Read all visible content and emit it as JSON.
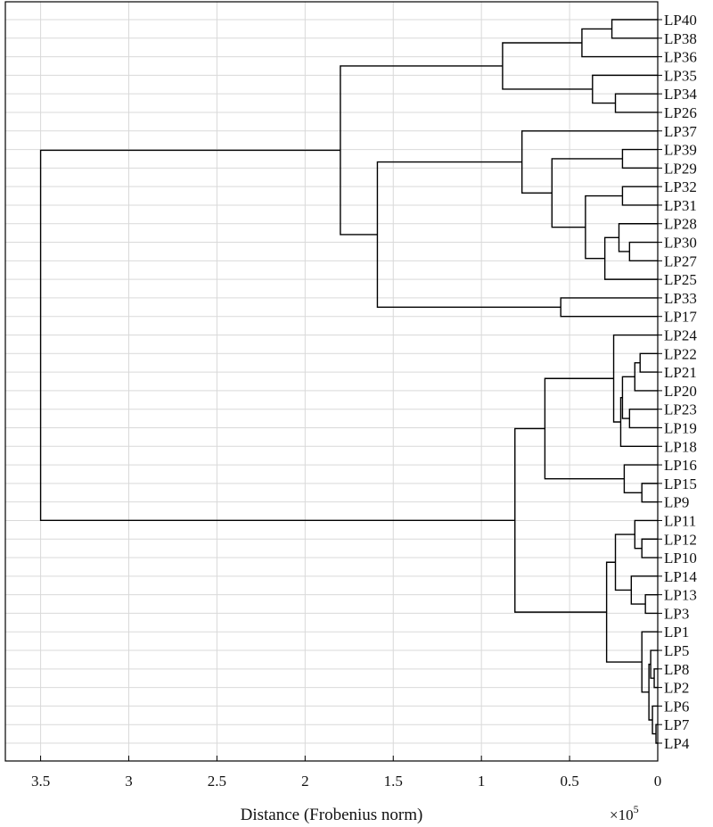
{
  "chart_data": {
    "type": "dendrogram",
    "orientation": "leaves-right",
    "xlabel": "Distance (Frobenius norm)",
    "x_multiplier_label": "×10",
    "x_multiplier_exponent": "5",
    "xlim": [
      0,
      3.7
    ],
    "x_reversed": true,
    "x_ticks": [
      3.5,
      3,
      2.5,
      2,
      1.5,
      1,
      0.5,
      0
    ],
    "x_tick_labels": [
      "3.5",
      "3",
      "2.5",
      "2",
      "1.5",
      "1",
      "0.5",
      "0"
    ],
    "grid": true,
    "line_color": "#000000",
    "grid_color": "#d9d9d9",
    "leaves": [
      "LP40",
      "LP38",
      "LP36",
      "LP35",
      "LP34",
      "LP26",
      "LP37",
      "LP39",
      "LP29",
      "LP32",
      "LP31",
      "LP28",
      "LP30",
      "LP27",
      "LP25",
      "LP33",
      "LP17",
      "LP24",
      "LP22",
      "LP21",
      "LP20",
      "LP23",
      "LP19",
      "LP18",
      "LP16",
      "LP15",
      "LP9",
      "LP11",
      "LP12",
      "LP10",
      "LP14",
      "LP13",
      "LP3",
      "LP1",
      "LP5",
      "LP8",
      "LP2",
      "LP6",
      "LP7",
      "LP4"
    ],
    "merges": [
      {
        "id": "A1",
        "left": "LP40",
        "right": "LP38",
        "height": 0.26
      },
      {
        "id": "A2",
        "left": "A1",
        "right": "LP36",
        "height": 0.43
      },
      {
        "id": "A3",
        "left": "LP34",
        "right": "LP26",
        "height": 0.24
      },
      {
        "id": "A4",
        "left": "LP35",
        "right": "A3",
        "height": 0.37
      },
      {
        "id": "A5",
        "left": "A2",
        "right": "A4",
        "height": 0.88
      },
      {
        "id": "B1",
        "left": "LP39",
        "right": "LP29",
        "height": 0.2
      },
      {
        "id": "B2",
        "left": "LP32",
        "right": "LP31",
        "height": 0.2
      },
      {
        "id": "B3",
        "left": "LP30",
        "right": "LP27",
        "height": 0.16
      },
      {
        "id": "B4",
        "left": "LP28",
        "right": "B3",
        "height": 0.22
      },
      {
        "id": "B5",
        "left": "B4",
        "right": "LP25",
        "height": 0.3
      },
      {
        "id": "B6",
        "left": "B2",
        "right": "B5",
        "height": 0.41
      },
      {
        "id": "B7",
        "left": "B1",
        "right": "B6",
        "height": 0.6
      },
      {
        "id": "B8",
        "left": "LP37",
        "right": "B7",
        "height": 0.77
      },
      {
        "id": "B9",
        "left": "LP33",
        "right": "LP17",
        "height": 0.55
      },
      {
        "id": "B10",
        "left": "B8",
        "right": "B9",
        "height": 1.59
      },
      {
        "id": "T1",
        "left": "A5",
        "right": "B10",
        "height": 1.8
      },
      {
        "id": "C1",
        "left": "LP22",
        "right": "LP21",
        "height": 0.1
      },
      {
        "id": "C2",
        "left": "C1",
        "right": "LP20",
        "height": 0.13
      },
      {
        "id": "C3",
        "left": "LP23",
        "right": "LP19",
        "height": 0.16
      },
      {
        "id": "C4",
        "left": "C2",
        "right": "C3",
        "height": 0.2
      },
      {
        "id": "C5",
        "left": "C4",
        "right": "LP18",
        "height": 0.21
      },
      {
        "id": "C6",
        "left": "LP24",
        "right": "C5",
        "height": 0.25
      },
      {
        "id": "C7",
        "left": "LP15",
        "right": "LP9",
        "height": 0.09
      },
      {
        "id": "C8",
        "left": "LP16",
        "right": "C7",
        "height": 0.19
      },
      {
        "id": "C9",
        "left": "C6",
        "right": "C8",
        "height": 0.64
      },
      {
        "id": "D1",
        "left": "LP12",
        "right": "LP10",
        "height": 0.09
      },
      {
        "id": "D2",
        "left": "LP11",
        "right": "D1",
        "height": 0.13
      },
      {
        "id": "D3",
        "left": "LP13",
        "right": "LP3",
        "height": 0.07
      },
      {
        "id": "D4",
        "left": "LP14",
        "right": "D3",
        "height": 0.15
      },
      {
        "id": "D5",
        "left": "D2",
        "right": "D4",
        "height": 0.24
      },
      {
        "id": "E1",
        "left": "LP8",
        "right": "LP2",
        "height": 0.02
      },
      {
        "id": "E2",
        "left": "LP5",
        "right": "E1",
        "height": 0.04
      },
      {
        "id": "E3",
        "left": "LP7",
        "right": "LP4",
        "height": 0.01
      },
      {
        "id": "E4",
        "left": "LP6",
        "right": "E3",
        "height": 0.03
      },
      {
        "id": "E5",
        "left": "E2",
        "right": "E4",
        "height": 0.05
      },
      {
        "id": "E6",
        "left": "LP1",
        "right": "E5",
        "height": 0.09
      },
      {
        "id": "D6",
        "left": "D5",
        "right": "E6",
        "height": 0.29
      },
      {
        "id": "C10",
        "left": "C9",
        "right": "D6",
        "height": 0.81
      },
      {
        "id": "ROOT",
        "left": "T1",
        "right": "C10",
        "height": 3.5
      }
    ]
  }
}
